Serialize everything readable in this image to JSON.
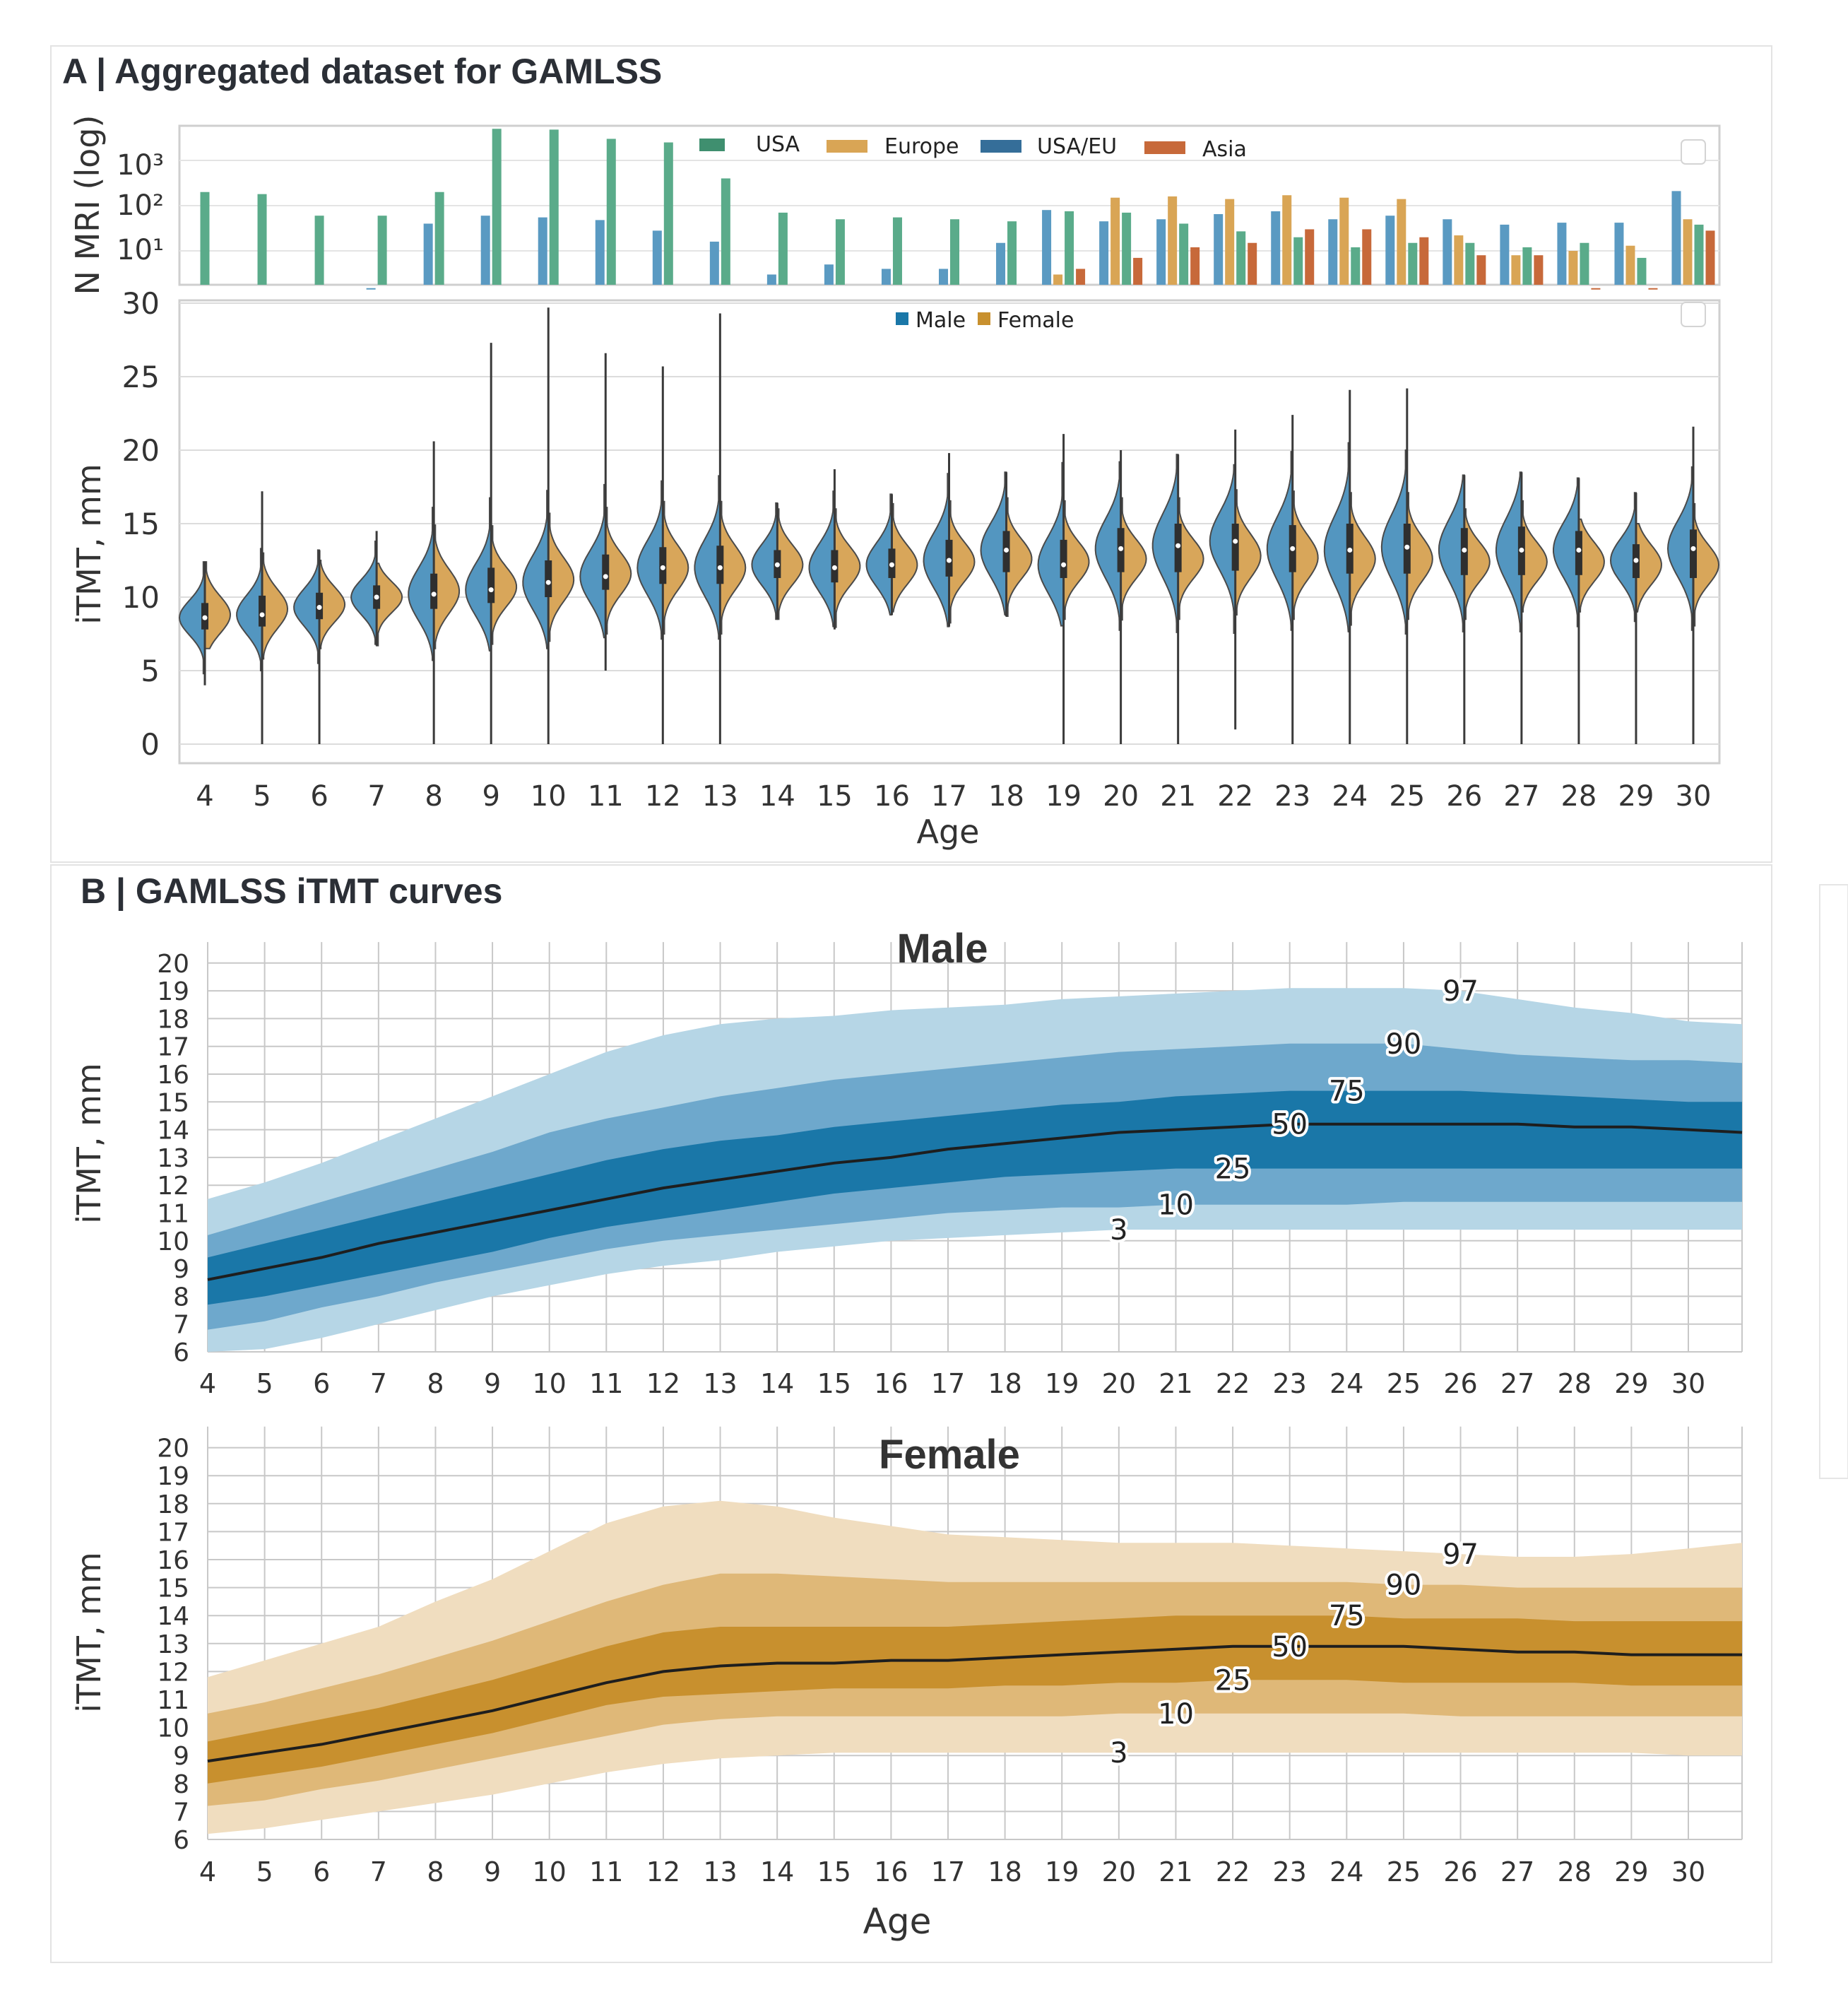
{
  "panel_a_title": "A | Aggregated dataset for GAMLSS",
  "panel_b_title": "B | GAMLSS iTMT curves",
  "colors": {
    "usa": "#5aab8a",
    "europe": "#d9a555",
    "usa_eu": "#5a9ac2",
    "asia": "#c7693a",
    "male": "#1a77a8",
    "female": "#c8902e"
  },
  "chart_data": [
    {
      "type": "bar",
      "ylabel": "N MRI (log)",
      "ytick_labels": [
        "10³",
        "10²",
        "10¹"
      ],
      "y_scale": "log",
      "legend": [
        "USA",
        "Europe",
        "USA/EU",
        "Asia"
      ],
      "legend_placement": "top-center",
      "categories": [
        4,
        5,
        6,
        7,
        8,
        9,
        10,
        11,
        12,
        13,
        14,
        15,
        16,
        17,
        18,
        19,
        20,
        21,
        22,
        23,
        24,
        25,
        26,
        27,
        28,
        29,
        30
      ],
      "series": [
        {
          "name": "USA",
          "values": [
            200,
            180,
            60,
            60,
            200,
            5000,
            4800,
            3000,
            2500,
            400,
            70,
            50,
            55,
            50,
            45,
            75,
            70,
            40,
            27,
            20,
            12,
            15,
            15,
            12,
            15,
            7,
            38
          ]
        },
        {
          "name": "Europe",
          "values": [
            null,
            null,
            null,
            null,
            null,
            null,
            null,
            null,
            null,
            null,
            null,
            null,
            null,
            null,
            null,
            3,
            150,
            160,
            140,
            170,
            150,
            140,
            22,
            8,
            10,
            13,
            50
          ]
        },
        {
          "name": "USA/EU",
          "values": [
            null,
            null,
            null,
            1.5,
            40,
            60,
            55,
            48,
            28,
            16,
            3,
            5,
            4,
            4,
            15,
            80,
            45,
            50,
            65,
            75,
            50,
            60,
            50,
            38,
            42,
            42,
            210
          ]
        },
        {
          "name": "Asia",
          "values": [
            null,
            null,
            null,
            null,
            null,
            null,
            null,
            null,
            null,
            null,
            null,
            null,
            null,
            null,
            null,
            4,
            7,
            12,
            15,
            30,
            30,
            20,
            8,
            8,
            1.5,
            1.5,
            28
          ]
        }
      ]
    },
    {
      "type": "violin",
      "xlabel": "Age",
      "ylabel": "iTMT, mm",
      "ylim": [
        0,
        30
      ],
      "yticks": [
        0,
        5,
        10,
        15,
        20,
        25,
        30
      ],
      "legend": [
        "Male",
        "Female"
      ],
      "legend_placement": "top-center",
      "categories": [
        4,
        5,
        6,
        7,
        8,
        9,
        10,
        11,
        12,
        13,
        14,
        15,
        16,
        17,
        18,
        19,
        20,
        21,
        22,
        23,
        24,
        25,
        26,
        27,
        28,
        29,
        30
      ],
      "series": [
        {
          "name": "Male",
          "median": [
            8.6,
            8.8,
            9.3,
            10,
            10.2,
            10.5,
            11,
            11.4,
            12,
            12,
            12.2,
            12,
            12.2,
            12.5,
            13.2,
            12.2,
            13.3,
            13.5,
            13.8,
            13.3,
            13.2,
            13.4,
            13.2,
            13.2,
            13.2,
            12.5,
            13.3
          ],
          "q1": [
            7.8,
            8.0,
            8.5,
            9.2,
            9.2,
            9.6,
            10,
            10.5,
            10.9,
            10.9,
            11.3,
            11.0,
            11.3,
            11.4,
            12.0,
            11.3,
            12.0,
            12.1,
            12.3,
            12.0,
            11.9,
            12.0,
            11.9,
            11.9,
            12.0,
            11.6,
            12.0
          ],
          "q3": [
            9.4,
            9.8,
            10.2,
            10.8,
            11.6,
            12.0,
            12.5,
            12.9,
            13.4,
            13.5,
            13.2,
            13.2,
            13.3,
            13.9,
            14.5,
            13.9,
            14.7,
            15.0,
            15.0,
            14.9,
            15.0,
            15.0,
            14.7,
            14.8,
            14.5,
            13.6,
            14.6
          ],
          "min": [
            4,
            0,
            0,
            6.8,
            0,
            0,
            0,
            5,
            0,
            0,
            8.5,
            8,
            8.8,
            8,
            8.8,
            0,
            0,
            0,
            1,
            0,
            0,
            0,
            0,
            0,
            0,
            0,
            0
          ],
          "max": [
            12.4,
            17.2,
            13.2,
            14.5,
            20.6,
            27.3,
            29.7,
            26.6,
            25.7,
            29.3,
            16.4,
            18.7,
            17,
            19.8,
            18.5,
            21.1,
            20,
            19.7,
            21.4,
            22.4,
            24.1,
            24.2,
            18.3,
            18.5,
            18.1,
            17.1,
            21.6
          ]
        },
        {
          "name": "Female",
          "median": [
            8.8,
            9.2,
            9.5,
            10,
            10.4,
            10.7,
            11.2,
            11.6,
            12,
            12,
            12.2,
            12.1,
            12.2,
            12.4,
            12.6,
            12.4,
            12.6,
            12.6,
            12.8,
            12.7,
            12.6,
            12.6,
            12.4,
            12.4,
            12.4,
            12.2,
            12.2
          ],
          "q1": [
            7.9,
            8.3,
            8.7,
            9.3,
            9.4,
            9.8,
            10.2,
            10.7,
            11.0,
            11.0,
            11.3,
            11.2,
            11.3,
            11.5,
            11.7,
            11.5,
            11.7,
            11.7,
            11.8,
            11.7,
            11.6,
            11.6,
            11.5,
            11.5,
            11.5,
            11.3,
            11.3
          ],
          "q3": [
            9.6,
            10.1,
            10.3,
            10.7,
            11.4,
            11.6,
            12.2,
            12.6,
            13.0,
            13.0,
            13.1,
            13.0,
            13.1,
            13.3,
            13.5,
            13.3,
            13.5,
            13.5,
            13.8,
            13.7,
            13.6,
            13.6,
            13.3,
            13.3,
            13.3,
            13.1,
            13.1
          ],
          "min": [
            6.5,
            5.8,
            6.5,
            6.7,
            6.5,
            6.8,
            7.0,
            7.5,
            7.5,
            7.5,
            8.5,
            7.8,
            9.0,
            8.0,
            8.7,
            8.5,
            8.2,
            8.5,
            8.8,
            8.5,
            8.0,
            8.5,
            8.5,
            9.0,
            9.0,
            9.0,
            8.0
          ],
          "max": [
            12.4,
            13.0,
            12.5,
            12.3,
            17.5,
            16.0,
            17.0,
            16.3,
            18.0,
            17.0,
            16.0,
            16.0,
            16.9,
            19.8,
            18.5,
            17.4,
            18.0,
            19.7,
            20.0,
            17.5,
            17.1,
            18.6,
            16.0,
            18.5,
            15.3,
            15.0,
            21.0
          ]
        }
      ]
    },
    {
      "type": "area",
      "title": "Male",
      "ylabel": "iTMT, mm",
      "ylim": [
        6,
        20.5
      ],
      "xlim": [
        4,
        31
      ],
      "x": [
        4,
        5,
        6,
        7,
        8,
        9,
        10,
        11,
        12,
        13,
        14,
        15,
        16,
        17,
        18,
        19,
        20,
        21,
        22,
        23,
        24,
        25,
        26,
        27,
        28,
        29,
        30,
        31
      ],
      "percentile_labels": [
        "3",
        "10",
        "25",
        "50",
        "75",
        "90",
        "97"
      ],
      "percentile_label_x": [
        20,
        21,
        22,
        23,
        24,
        25,
        26
      ],
      "percentiles": {
        "3": [
          6.0,
          6.1,
          6.5,
          7.0,
          7.5,
          8.0,
          8.4,
          8.8,
          9.1,
          9.3,
          9.6,
          9.8,
          10.0,
          10.1,
          10.2,
          10.3,
          10.4,
          10.4,
          10.4,
          10.4,
          10.4,
          10.4,
          10.4,
          10.4,
          10.4,
          10.4,
          10.4,
          10.4
        ],
        "10": [
          6.8,
          7.1,
          7.6,
          8.0,
          8.5,
          8.9,
          9.3,
          9.7,
          10.0,
          10.2,
          10.4,
          10.6,
          10.8,
          11.0,
          11.1,
          11.2,
          11.2,
          11.3,
          11.3,
          11.3,
          11.3,
          11.4,
          11.4,
          11.4,
          11.4,
          11.4,
          11.4,
          11.4
        ],
        "25": [
          7.7,
          8.0,
          8.4,
          8.8,
          9.2,
          9.6,
          10.1,
          10.5,
          10.8,
          11.1,
          11.4,
          11.7,
          11.9,
          12.1,
          12.3,
          12.4,
          12.5,
          12.6,
          12.6,
          12.6,
          12.6,
          12.6,
          12.6,
          12.6,
          12.6,
          12.6,
          12.6,
          12.6
        ],
        "50": [
          8.6,
          9.0,
          9.4,
          9.9,
          10.3,
          10.7,
          11.1,
          11.5,
          11.9,
          12.2,
          12.5,
          12.8,
          13.0,
          13.3,
          13.5,
          13.7,
          13.9,
          14.0,
          14.1,
          14.2,
          14.2,
          14.2,
          14.2,
          14.2,
          14.1,
          14.1,
          14.0,
          13.9
        ],
        "75": [
          9.4,
          9.9,
          10.4,
          10.9,
          11.4,
          11.9,
          12.4,
          12.9,
          13.3,
          13.6,
          13.8,
          14.1,
          14.3,
          14.5,
          14.7,
          14.9,
          15.0,
          15.2,
          15.3,
          15.4,
          15.4,
          15.4,
          15.4,
          15.3,
          15.2,
          15.1,
          15.0,
          15.0
        ],
        "90": [
          10.2,
          10.8,
          11.4,
          12.0,
          12.6,
          13.2,
          13.9,
          14.4,
          14.8,
          15.2,
          15.5,
          15.8,
          16.0,
          16.2,
          16.4,
          16.6,
          16.8,
          16.9,
          17.0,
          17.1,
          17.1,
          17.1,
          16.9,
          16.7,
          16.6,
          16.5,
          16.5,
          16.4
        ],
        "97": [
          11.5,
          12.1,
          12.8,
          13.6,
          14.4,
          15.2,
          16.0,
          16.8,
          17.4,
          17.8,
          18.0,
          18.1,
          18.3,
          18.4,
          18.5,
          18.7,
          18.8,
          18.9,
          19.0,
          19.1,
          19.1,
          19.1,
          19.0,
          18.7,
          18.4,
          18.2,
          17.9,
          17.8
        ]
      }
    },
    {
      "type": "area",
      "title": "Female",
      "xlabel": "Age",
      "ylabel": "iTMT, mm",
      "ylim": [
        6,
        20.5
      ],
      "xlim": [
        4,
        31
      ],
      "x": [
        4,
        5,
        6,
        7,
        8,
        9,
        10,
        11,
        12,
        13,
        14,
        15,
        16,
        17,
        18,
        19,
        20,
        21,
        22,
        23,
        24,
        25,
        26,
        27,
        28,
        29,
        30,
        31
      ],
      "percentile_labels": [
        "3",
        "10",
        "25",
        "50",
        "75",
        "90",
        "97"
      ],
      "percentile_label_x": [
        20,
        21,
        22,
        23,
        24,
        25,
        26
      ],
      "percentiles": {
        "3": [
          6.2,
          6.4,
          6.7,
          7.0,
          7.3,
          7.6,
          8.0,
          8.4,
          8.7,
          8.9,
          9.0,
          9.1,
          9.1,
          9.1,
          9.1,
          9.1,
          9.1,
          9.1,
          9.1,
          9.1,
          9.1,
          9.1,
          9.1,
          9.1,
          9.1,
          9.1,
          9.0,
          9.0
        ],
        "10": [
          7.2,
          7.4,
          7.8,
          8.1,
          8.5,
          8.9,
          9.3,
          9.7,
          10.1,
          10.3,
          10.4,
          10.4,
          10.4,
          10.4,
          10.4,
          10.4,
          10.5,
          10.5,
          10.5,
          10.5,
          10.5,
          10.5,
          10.4,
          10.4,
          10.4,
          10.4,
          10.4,
          10.4
        ],
        "25": [
          8.0,
          8.3,
          8.6,
          9.0,
          9.4,
          9.8,
          10.3,
          10.8,
          11.1,
          11.2,
          11.3,
          11.4,
          11.4,
          11.4,
          11.5,
          11.5,
          11.6,
          11.6,
          11.7,
          11.7,
          11.7,
          11.6,
          11.6,
          11.6,
          11.6,
          11.5,
          11.5,
          11.5
        ],
        "50": [
          8.8,
          9.1,
          9.4,
          9.8,
          10.2,
          10.6,
          11.1,
          11.6,
          12.0,
          12.2,
          12.3,
          12.3,
          12.4,
          12.4,
          12.5,
          12.6,
          12.7,
          12.8,
          12.9,
          12.9,
          12.9,
          12.9,
          12.8,
          12.7,
          12.7,
          12.6,
          12.6,
          12.6
        ],
        "75": [
          9.5,
          9.9,
          10.3,
          10.7,
          11.2,
          11.7,
          12.3,
          12.9,
          13.4,
          13.6,
          13.6,
          13.6,
          13.6,
          13.6,
          13.7,
          13.8,
          13.9,
          14.0,
          14.0,
          14.0,
          14.0,
          13.9,
          13.9,
          13.9,
          13.8,
          13.8,
          13.8,
          13.8
        ],
        "90": [
          10.5,
          10.9,
          11.4,
          11.9,
          12.5,
          13.1,
          13.8,
          14.5,
          15.1,
          15.5,
          15.5,
          15.4,
          15.3,
          15.2,
          15.2,
          15.2,
          15.2,
          15.2,
          15.2,
          15.2,
          15.2,
          15.1,
          15.1,
          15.0,
          15.0,
          15.0,
          15.0,
          15.0
        ],
        "97": [
          11.8,
          12.4,
          13.0,
          13.6,
          14.5,
          15.3,
          16.3,
          17.3,
          17.9,
          18.1,
          17.9,
          17.5,
          17.2,
          16.9,
          16.8,
          16.7,
          16.6,
          16.6,
          16.6,
          16.5,
          16.4,
          16.3,
          16.2,
          16.1,
          16.1,
          16.2,
          16.4,
          16.6
        ]
      }
    }
  ]
}
